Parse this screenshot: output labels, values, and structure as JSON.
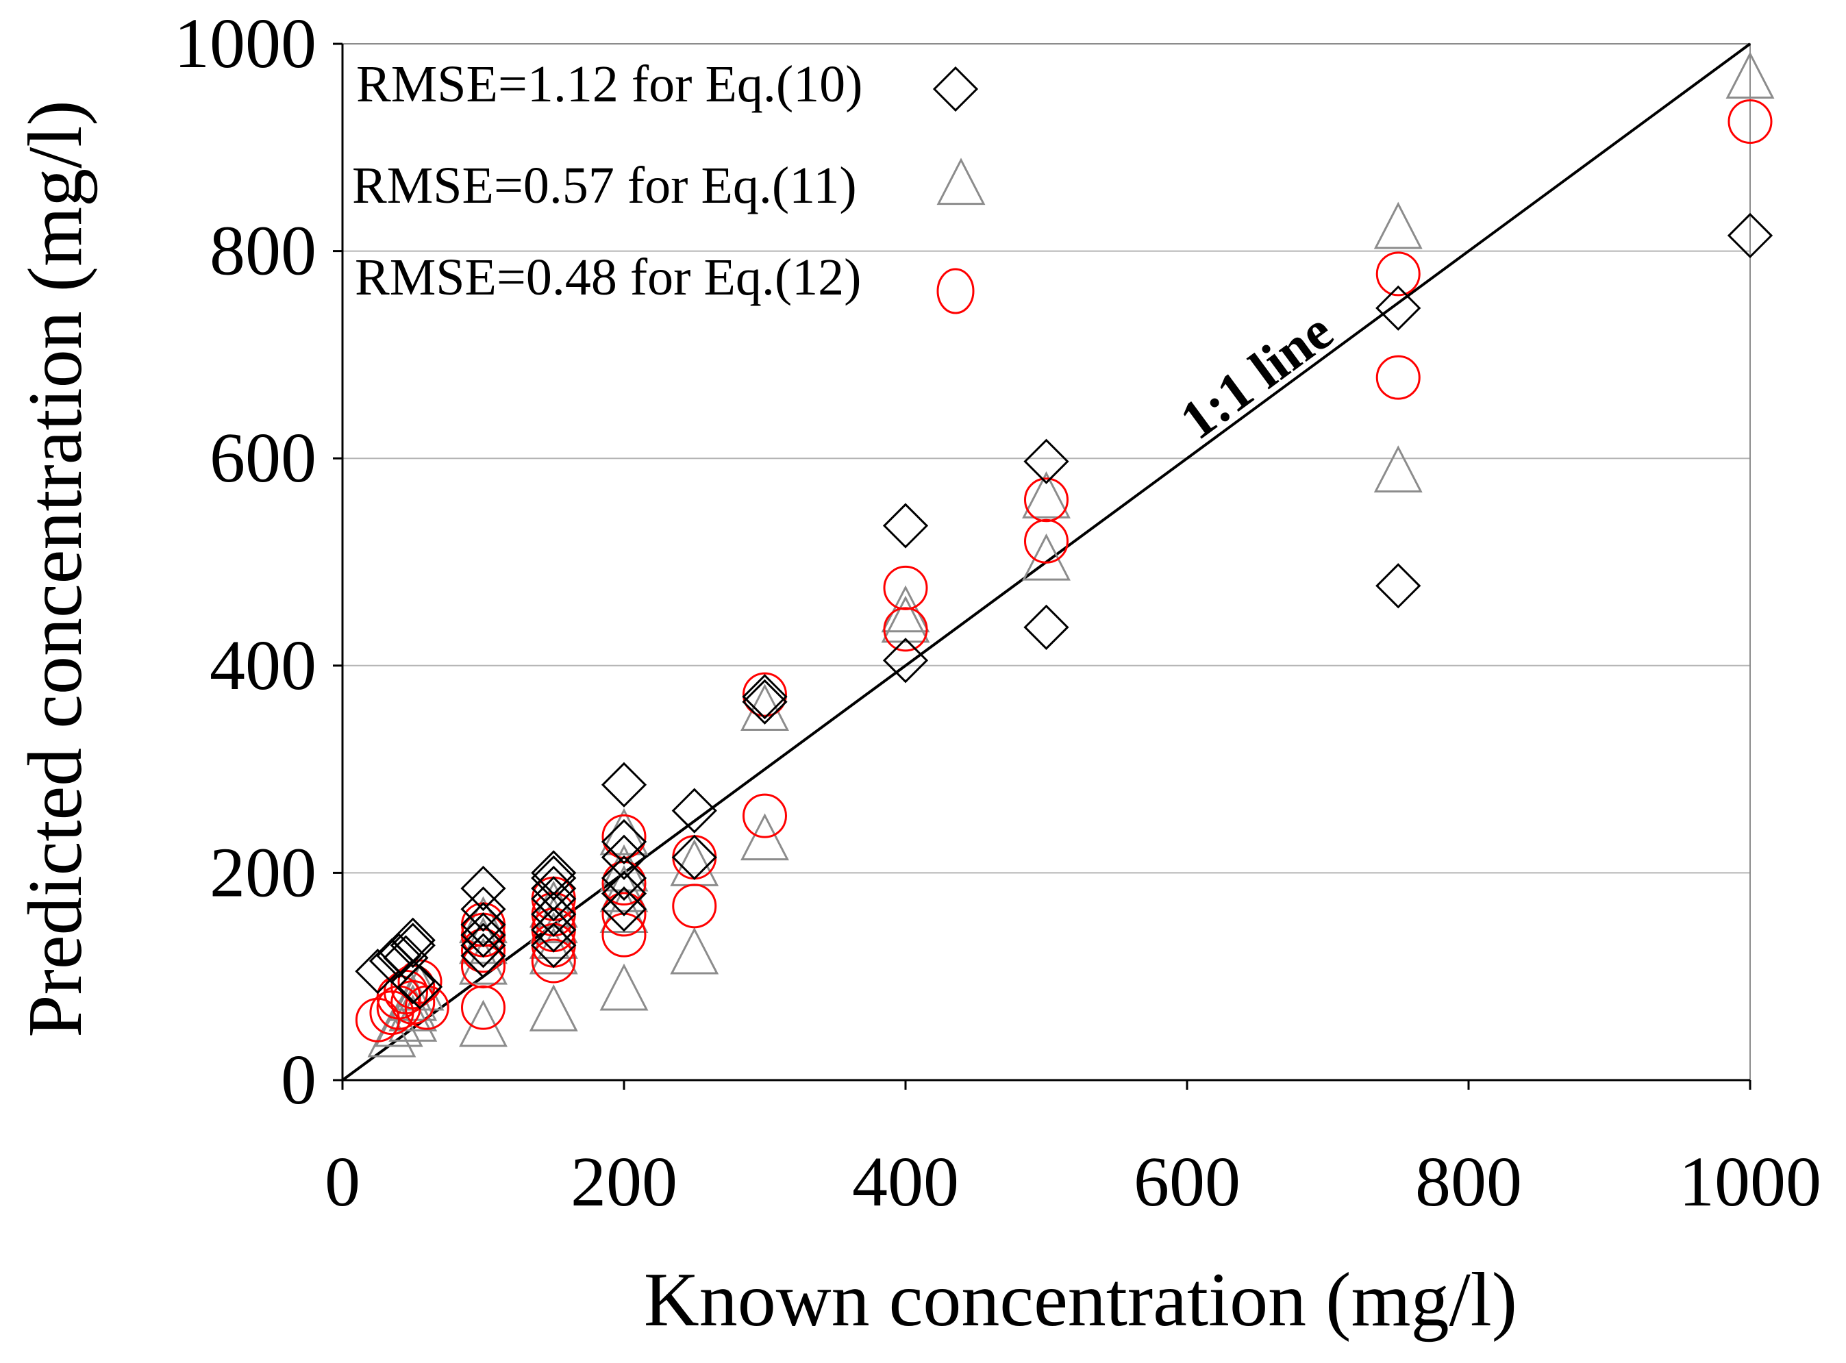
{
  "chart_data": {
    "type": "scatter",
    "title": "",
    "xlabel": "Known concentration (mg/l)",
    "ylabel": "Predicted concentration (mg/l)",
    "xlim": [
      0,
      1000
    ],
    "ylim": [
      0,
      1000
    ],
    "x_ticks": [
      "0",
      "200",
      "400",
      "600",
      "800",
      "1000"
    ],
    "y_ticks": [
      "0",
      "200",
      "400",
      "600",
      "800",
      "1000"
    ],
    "grid": "horizontal",
    "reference_line": {
      "label": "1:1 line",
      "from": [
        0,
        0
      ],
      "to": [
        1000,
        1000
      ]
    },
    "legend_position": "top-left",
    "series": [
      {
        "name": "RMSE=1.12 for Eq.(10)",
        "marker": "diamond",
        "color": "#000000",
        "points": [
          [
            25,
            105
          ],
          [
            35,
            115
          ],
          [
            40,
            120
          ],
          [
            45,
            118
          ],
          [
            50,
            135
          ],
          [
            50,
            130
          ],
          [
            50,
            95
          ],
          [
            55,
            90
          ],
          [
            100,
            185
          ],
          [
            100,
            165
          ],
          [
            100,
            150
          ],
          [
            100,
            140
          ],
          [
            100,
            130
          ],
          [
            100,
            120
          ],
          [
            150,
            200
          ],
          [
            150,
            195
          ],
          [
            150,
            185
          ],
          [
            150,
            175
          ],
          [
            150,
            160
          ],
          [
            150,
            145
          ],
          [
            150,
            130
          ],
          [
            200,
            285
          ],
          [
            200,
            230
          ],
          [
            200,
            215
          ],
          [
            200,
            195
          ],
          [
            200,
            180
          ],
          [
            200,
            165
          ],
          [
            250,
            260
          ],
          [
            250,
            215
          ],
          [
            300,
            370
          ],
          [
            300,
            365
          ],
          [
            400,
            535
          ],
          [
            400,
            405
          ],
          [
            500,
            597
          ],
          [
            500,
            437
          ],
          [
            750,
            745
          ],
          [
            750,
            477
          ],
          [
            1000,
            815
          ]
        ]
      },
      {
        "name": "RMSE=0.57 for Eq.(11)",
        "marker": "triangle",
        "color": "#8c8c8c",
        "points": [
          [
            35,
            40
          ],
          [
            40,
            50
          ],
          [
            50,
            55
          ],
          [
            50,
            65
          ],
          [
            50,
            75
          ],
          [
            55,
            85
          ],
          [
            100,
            50
          ],
          [
            100,
            110
          ],
          [
            100,
            130
          ],
          [
            100,
            150
          ],
          [
            150,
            65
          ],
          [
            150,
            120
          ],
          [
            150,
            135
          ],
          [
            150,
            150
          ],
          [
            150,
            165
          ],
          [
            200,
            85
          ],
          [
            200,
            160
          ],
          [
            200,
            180
          ],
          [
            200,
            200
          ],
          [
            200,
            235
          ],
          [
            250,
            120
          ],
          [
            250,
            205
          ],
          [
            300,
            230
          ],
          [
            300,
            355
          ],
          [
            400,
            440
          ],
          [
            400,
            450
          ],
          [
            500,
            500
          ],
          [
            500,
            560
          ],
          [
            750,
            585
          ],
          [
            750,
            820
          ],
          [
            1000,
            965
          ]
        ]
      },
      {
        "name": "RMSE=0.48 for Eq.(12)",
        "marker": "circle",
        "color": "#ff0000",
        "points": [
          [
            25,
            58
          ],
          [
            35,
            65
          ],
          [
            40,
            70
          ],
          [
            40,
            80
          ],
          [
            45,
            85
          ],
          [
            50,
            75
          ],
          [
            50,
            90
          ],
          [
            55,
            95
          ],
          [
            60,
            70
          ],
          [
            100,
            70
          ],
          [
            100,
            110
          ],
          [
            100,
            125
          ],
          [
            100,
            140
          ],
          [
            100,
            150
          ],
          [
            150,
            115
          ],
          [
            150,
            130
          ],
          [
            150,
            145
          ],
          [
            150,
            160
          ],
          [
            150,
            175
          ],
          [
            200,
            140
          ],
          [
            200,
            160
          ],
          [
            200,
            190
          ],
          [
            200,
            235
          ],
          [
            250,
            168
          ],
          [
            250,
            215
          ],
          [
            300,
            255
          ],
          [
            300,
            372
          ],
          [
            400,
            435
          ],
          [
            400,
            475
          ],
          [
            500,
            520
          ],
          [
            500,
            560
          ],
          [
            750,
            678
          ],
          [
            750,
            778
          ],
          [
            1000,
            925
          ]
        ]
      }
    ]
  }
}
